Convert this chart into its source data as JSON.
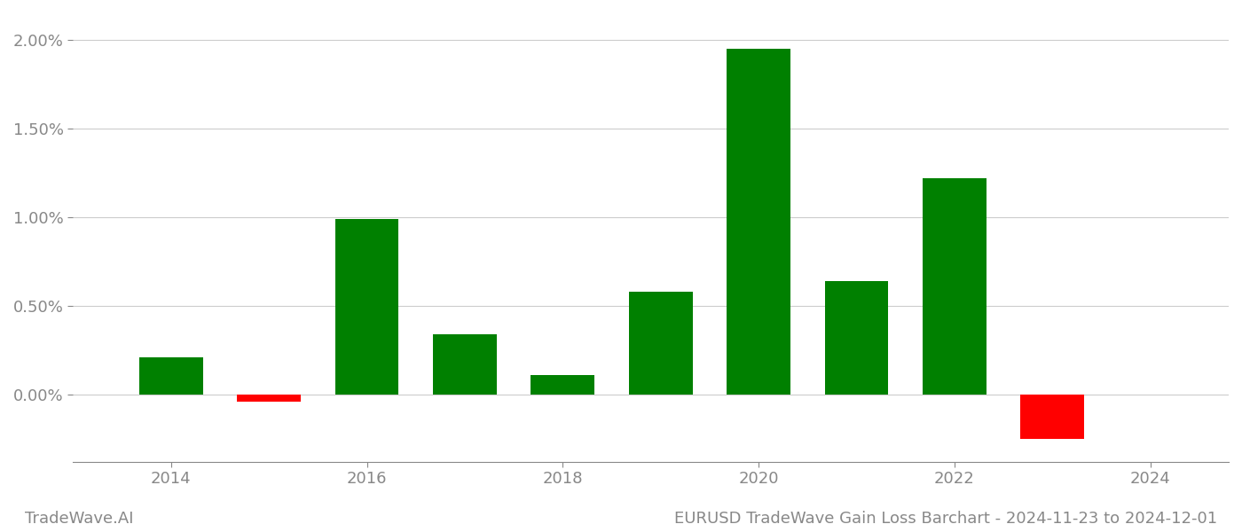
{
  "years": [
    2014,
    2015,
    2016,
    2017,
    2018,
    2019,
    2020,
    2021,
    2022,
    2023
  ],
  "values": [
    0.0021,
    -0.0004,
    0.0099,
    0.0034,
    0.0011,
    0.0058,
    0.0195,
    0.0064,
    0.0122,
    -0.0025
  ],
  "colors": [
    "#008000",
    "#ff0000",
    "#008000",
    "#008000",
    "#008000",
    "#008000",
    "#008000",
    "#008000",
    "#008000",
    "#ff0000"
  ],
  "title": "EURUSD TradeWave Gain Loss Barchart - 2024-11-23 to 2024-12-01",
  "watermark": "TradeWave.AI",
  "ylim_min": -0.0038,
  "ylim_max": 0.0215,
  "xlim_min": 2013.0,
  "xlim_max": 2024.8,
  "background_color": "#ffffff",
  "grid_color": "#cccccc",
  "axis_color": "#888888",
  "tick_color": "#888888",
  "bar_width": 0.65,
  "xticks": [
    2014,
    2016,
    2018,
    2020,
    2022,
    2024
  ],
  "ytick_step": 0.005
}
